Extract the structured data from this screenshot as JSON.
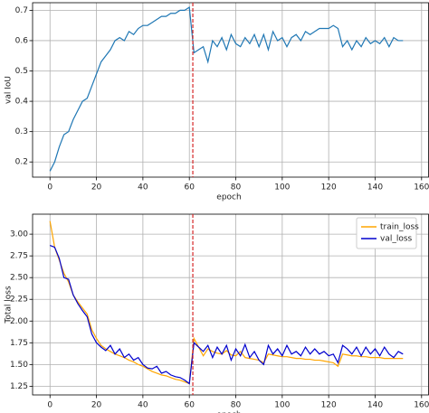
{
  "chart_data": [
    {
      "type": "line",
      "xlabel": "epoch",
      "ylabel": "val IoU",
      "color": "#1f77b4",
      "x": [
        0,
        2,
        4,
        6,
        8,
        10,
        12,
        14,
        16,
        18,
        20,
        22,
        24,
        26,
        28,
        30,
        32,
        34,
        36,
        38,
        40,
        42,
        44,
        46,
        48,
        50,
        52,
        54,
        56,
        58,
        60,
        62,
        64,
        66,
        68,
        70,
        72,
        74,
        76,
        78,
        80,
        82,
        84,
        86,
        88,
        90,
        92,
        94,
        96,
        98,
        100,
        102,
        104,
        106,
        108,
        110,
        112,
        114,
        116,
        118,
        120,
        122,
        124,
        126,
        128,
        130,
        132,
        134,
        136,
        138,
        140,
        142,
        144,
        146,
        148,
        150,
        152
      ],
      "values": [
        0.17,
        0.2,
        0.25,
        0.29,
        0.3,
        0.34,
        0.37,
        0.4,
        0.41,
        0.45,
        0.49,
        0.53,
        0.55,
        0.57,
        0.6,
        0.61,
        0.6,
        0.63,
        0.62,
        0.64,
        0.65,
        0.65,
        0.66,
        0.67,
        0.68,
        0.68,
        0.69,
        0.69,
        0.7,
        0.7,
        0.71,
        0.56,
        0.57,
        0.58,
        0.53,
        0.6,
        0.58,
        0.61,
        0.57,
        0.62,
        0.59,
        0.58,
        0.61,
        0.59,
        0.62,
        0.58,
        0.62,
        0.57,
        0.63,
        0.6,
        0.61,
        0.58,
        0.61,
        0.62,
        0.6,
        0.63,
        0.62,
        0.63,
        0.64,
        0.64,
        0.64,
        0.65,
        0.64,
        0.58,
        0.6,
        0.57,
        0.6,
        0.58,
        0.61,
        0.59,
        0.6,
        0.59,
        0.61,
        0.58,
        0.61,
        0.6,
        0.6
      ],
      "vline": 61.5,
      "vline_color": "#d62728",
      "xlim": [
        -7.5,
        163
      ],
      "xticks": [
        0,
        20,
        40,
        60,
        80,
        100,
        120,
        140,
        160
      ],
      "ylim": [
        0.15,
        0.725
      ],
      "yticks": [
        0.2,
        0.3,
        0.4,
        0.5,
        0.6,
        0.7
      ],
      "grid": true
    },
    {
      "type": "line",
      "xlabel": "epoch",
      "ylabel": "Total loss",
      "legend": "upper right",
      "x": [
        0,
        2,
        4,
        6,
        8,
        10,
        12,
        14,
        16,
        18,
        20,
        22,
        24,
        26,
        28,
        30,
        32,
        34,
        36,
        38,
        40,
        42,
        44,
        46,
        48,
        50,
        52,
        54,
        56,
        58,
        60,
        62,
        64,
        66,
        68,
        70,
        72,
        74,
        76,
        78,
        80,
        82,
        84,
        86,
        88,
        90,
        92,
        94,
        96,
        98,
        100,
        102,
        104,
        106,
        108,
        110,
        112,
        114,
        116,
        118,
        120,
        122,
        124,
        126,
        128,
        130,
        132,
        134,
        136,
        138,
        140,
        142,
        144,
        146,
        148,
        150,
        152
      ],
      "series": [
        {
          "name": "train_loss",
          "color": "#ffa500",
          "values": [
            3.15,
            2.85,
            2.7,
            2.55,
            2.45,
            2.3,
            2.22,
            2.15,
            2.08,
            1.9,
            1.8,
            1.72,
            1.68,
            1.65,
            1.62,
            1.6,
            1.58,
            1.55,
            1.53,
            1.5,
            1.48,
            1.45,
            1.42,
            1.4,
            1.38,
            1.37,
            1.35,
            1.33,
            1.32,
            1.3,
            1.28,
            1.8,
            1.7,
            1.6,
            1.68,
            1.65,
            1.63,
            1.62,
            1.66,
            1.61,
            1.6,
            1.65,
            1.58,
            1.57,
            1.56,
            1.55,
            1.52,
            1.62,
            1.61,
            1.6,
            1.59,
            1.59,
            1.58,
            1.57,
            1.57,
            1.56,
            1.56,
            1.55,
            1.55,
            1.54,
            1.53,
            1.52,
            1.48,
            1.62,
            1.61,
            1.6,
            1.6,
            1.59,
            1.59,
            1.58,
            1.58,
            1.58,
            1.57,
            1.57,
            1.57,
            1.57,
            1.57
          ]
        },
        {
          "name": "val_loss",
          "color": "#0000cd",
          "values": [
            2.87,
            2.85,
            2.72,
            2.5,
            2.48,
            2.3,
            2.2,
            2.12,
            2.05,
            1.85,
            1.75,
            1.7,
            1.66,
            1.72,
            1.62,
            1.68,
            1.58,
            1.62,
            1.55,
            1.58,
            1.5,
            1.46,
            1.45,
            1.48,
            1.4,
            1.42,
            1.38,
            1.36,
            1.35,
            1.32,
            1.28,
            1.75,
            1.7,
            1.65,
            1.72,
            1.58,
            1.7,
            1.62,
            1.72,
            1.55,
            1.68,
            1.6,
            1.73,
            1.58,
            1.65,
            1.55,
            1.5,
            1.72,
            1.62,
            1.68,
            1.6,
            1.72,
            1.62,
            1.65,
            1.6,
            1.7,
            1.62,
            1.68,
            1.62,
            1.65,
            1.6,
            1.62,
            1.52,
            1.72,
            1.68,
            1.62,
            1.7,
            1.6,
            1.7,
            1.62,
            1.68,
            1.6,
            1.7,
            1.62,
            1.58,
            1.65,
            1.62
          ]
        }
      ],
      "vline": 61.5,
      "vline_color": "#d62728",
      "xlim": [
        -7.5,
        163
      ],
      "xticks": [
        0,
        20,
        40,
        60,
        80,
        100,
        120,
        140,
        160
      ],
      "ylim": [
        1.15,
        3.23
      ],
      "yticks": [
        {
          "value": 1.25,
          "label": "1.25"
        },
        {
          "value": 1.5,
          "label": "1.50"
        },
        {
          "value": 1.75,
          "label": "1.75"
        },
        {
          "value": 2,
          "label": "2.00"
        },
        {
          "value": 2.25,
          "label": "2.25"
        },
        {
          "value": 2.5,
          "label": "2.50"
        },
        {
          "value": 2.75,
          "label": "2.75"
        },
        {
          "value": 3,
          "label": "3.00"
        }
      ],
      "grid": true
    }
  ]
}
